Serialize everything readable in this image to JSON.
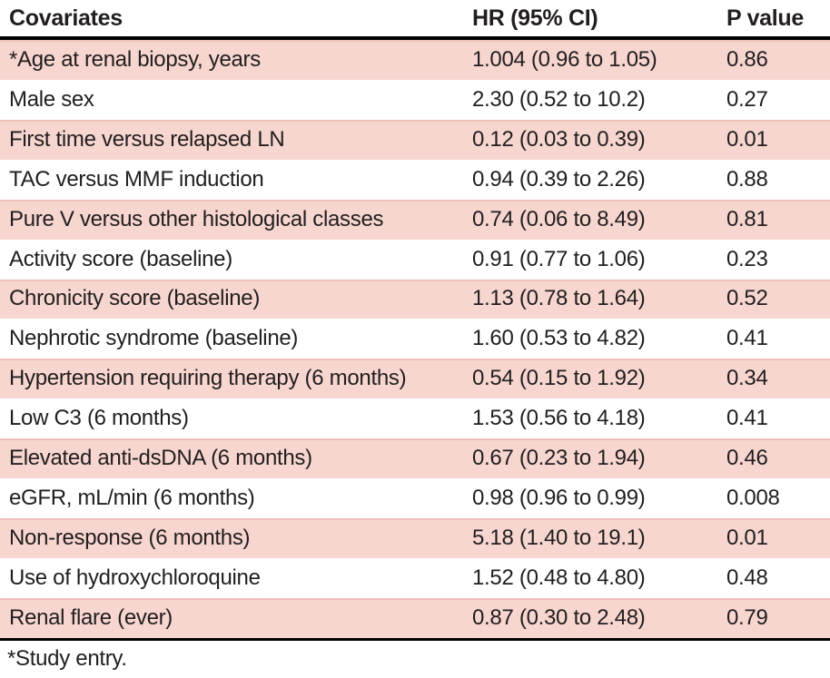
{
  "colors": {
    "row_shade_pink": "#f7d6d0",
    "row_shade_edge": "#eec0b8",
    "rule_black": "#000000",
    "text": "#221e1f",
    "background": "#ffffff"
  },
  "table": {
    "columns": [
      "Covariates",
      "HR (95% CI)",
      "P value"
    ],
    "rows": [
      {
        "covariate": "*Age at renal biopsy, years",
        "hr_ci": "1.004 (0.96 to 1.05)",
        "p_value": "0.86"
      },
      {
        "covariate": "Male sex",
        "hr_ci": "2.30 (0.52 to 10.2)",
        "p_value": "0.27"
      },
      {
        "covariate": "First time versus relapsed LN",
        "hr_ci": "0.12 (0.03 to 0.39)",
        "p_value": "0.01"
      },
      {
        "covariate": "TAC versus MMF induction",
        "hr_ci": "0.94 (0.39 to 2.26)",
        "p_value": "0.88"
      },
      {
        "covariate": "Pure V versus other histological classes",
        "hr_ci": "0.74 (0.06 to 8.49)",
        "p_value": "0.81"
      },
      {
        "covariate": "Activity score (baseline)",
        "hr_ci": "0.91 (0.77 to 1.06)",
        "p_value": "0.23"
      },
      {
        "covariate": "Chronicity score (baseline)",
        "hr_ci": "1.13 (0.78 to 1.64)",
        "p_value": "0.52"
      },
      {
        "covariate": "Nephrotic syndrome (baseline)",
        "hr_ci": "1.60 (0.53 to 4.82)",
        "p_value": "0.41"
      },
      {
        "covariate": "Hypertension requiring therapy (6 months)",
        "hr_ci": "0.54 (0.15 to 1.92)",
        "p_value": "0.34"
      },
      {
        "covariate": "Low C3 (6 months)",
        "hr_ci": "1.53 (0.56 to 4.18)",
        "p_value": "0.41"
      },
      {
        "covariate": "Elevated anti-dsDNA (6 months)",
        "hr_ci": "0.67 (0.23 to 1.94)",
        "p_value": "0.46"
      },
      {
        "covariate": "eGFR, mL/min (6 months)",
        "hr_ci": "0.98 (0.96 to 0.99)",
        "p_value": "0.008"
      },
      {
        "covariate": "Non-response (6 months)",
        "hr_ci": "5.18 (1.40 to 19.1)",
        "p_value": "0.01"
      },
      {
        "covariate": "Use of hydroxychloroquine",
        "hr_ci": "1.52 (0.48 to 4.80)",
        "p_value": "0.48"
      },
      {
        "covariate": "Renal flare (ever)",
        "hr_ci": "0.87 (0.30 to 2.48)",
        "p_value": "0.79"
      }
    ],
    "footnote": "*Study entry."
  }
}
